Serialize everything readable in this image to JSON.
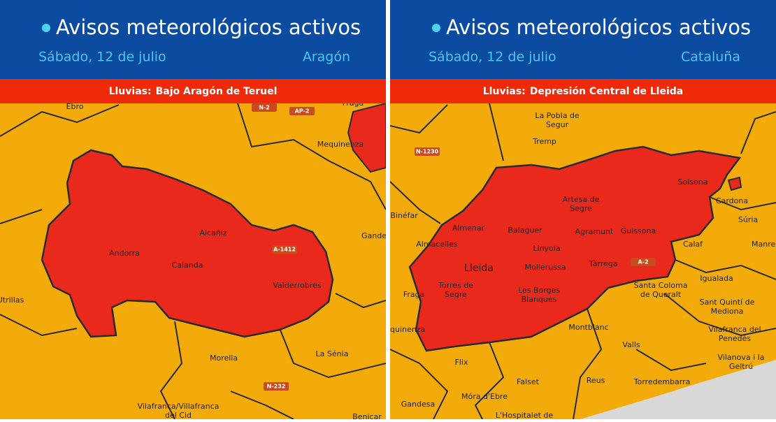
{
  "panels": [
    {
      "title": "Avisos meteorológicos activos",
      "date": "Sábado, 12 de julio",
      "region": "Aragón",
      "warning_type": "Lluvias:",
      "warning_area": "Bajo Aragón de Teruel",
      "places": [
        {
          "lines": [
            "Ebro"
          ]
        },
        {
          "lines": [
            "Fraga"
          ]
        },
        {
          "lines": [
            "Mequinenza"
          ]
        },
        {
          "lines": [
            "Alcañiz"
          ]
        },
        {
          "lines": [
            "Andorra"
          ]
        },
        {
          "lines": [
            "Calanda"
          ]
        },
        {
          "lines": [
            "Valderrobres"
          ]
        },
        {
          "lines": [
            "Utrillas"
          ]
        },
        {
          "lines": [
            "Gande"
          ]
        },
        {
          "lines": [
            "Morella"
          ]
        },
        {
          "lines": [
            "La Sénia"
          ]
        },
        {
          "lines": [
            "Vilafranca/Villafranca",
            "del Cid"
          ]
        },
        {
          "lines": [
            "Benicar"
          ]
        }
      ],
      "roads": [
        "N-2",
        "AP-2",
        "A-1412",
        "N-232"
      ]
    },
    {
      "title": "Avisos meteorológicos activos",
      "date": "Sábado, 12 de julio",
      "region": "Cataluña",
      "warning_type": "Lluvias:",
      "warning_area": "Depresión Central de Lleida",
      "places": [
        {
          "lines": [
            "La Pobla de",
            "Segur"
          ]
        },
        {
          "lines": [
            "Tremp"
          ]
        },
        {
          "lines": [
            "Binéfar"
          ]
        },
        {
          "lines": [
            "Artesa de",
            "Segre"
          ]
        },
        {
          "lines": [
            "Solsona"
          ]
        },
        {
          "lines": [
            "Cardona"
          ]
        },
        {
          "lines": [
            "Súria"
          ]
        },
        {
          "lines": [
            "Almenar"
          ]
        },
        {
          "lines": [
            "Balaguer"
          ]
        },
        {
          "lines": [
            "Agramunt"
          ]
        },
        {
          "lines": [
            "Guissona"
          ]
        },
        {
          "lines": [
            "Almacelles"
          ]
        },
        {
          "lines": [
            "Linyola"
          ]
        },
        {
          "lines": [
            "Calaf"
          ]
        },
        {
          "lines": [
            "Manres"
          ]
        },
        {
          "lines": [
            "Lleida"
          ]
        },
        {
          "lines": [
            "Mollerussa"
          ]
        },
        {
          "lines": [
            "Tàrrega"
          ]
        },
        {
          "lines": [
            "Igualada"
          ]
        },
        {
          "lines": [
            "Torres de",
            "Segre"
          ]
        },
        {
          "lines": [
            "Les Borges",
            "Blanques"
          ]
        },
        {
          "lines": [
            "Fraga"
          ]
        },
        {
          "lines": [
            "Santa Coloma",
            "de Queralt"
          ]
        },
        {
          "lines": [
            "Sant Quintí de",
            "Mediona"
          ]
        },
        {
          "lines": [
            "Montblanc"
          ]
        },
        {
          "lines": [
            "Mequinenza"
          ]
        },
        {
          "lines": [
            "Vilafranca del",
            "Penedès"
          ]
        },
        {
          "lines": [
            "Valls"
          ]
        },
        {
          "lines": [
            "Flix"
          ]
        },
        {
          "lines": [
            "Vilanova i la",
            "Geltrú"
          ]
        },
        {
          "lines": [
            "Falset"
          ]
        },
        {
          "lines": [
            "Reus"
          ]
        },
        {
          "lines": [
            "Torredembarra"
          ]
        },
        {
          "lines": [
            "Móra d'Ebre"
          ]
        },
        {
          "lines": [
            "Gandesa"
          ]
        },
        {
          "lines": [
            "L'Hospitalet de"
          ]
        }
      ],
      "roads": [
        "N-1230",
        "A-2"
      ]
    }
  ]
}
